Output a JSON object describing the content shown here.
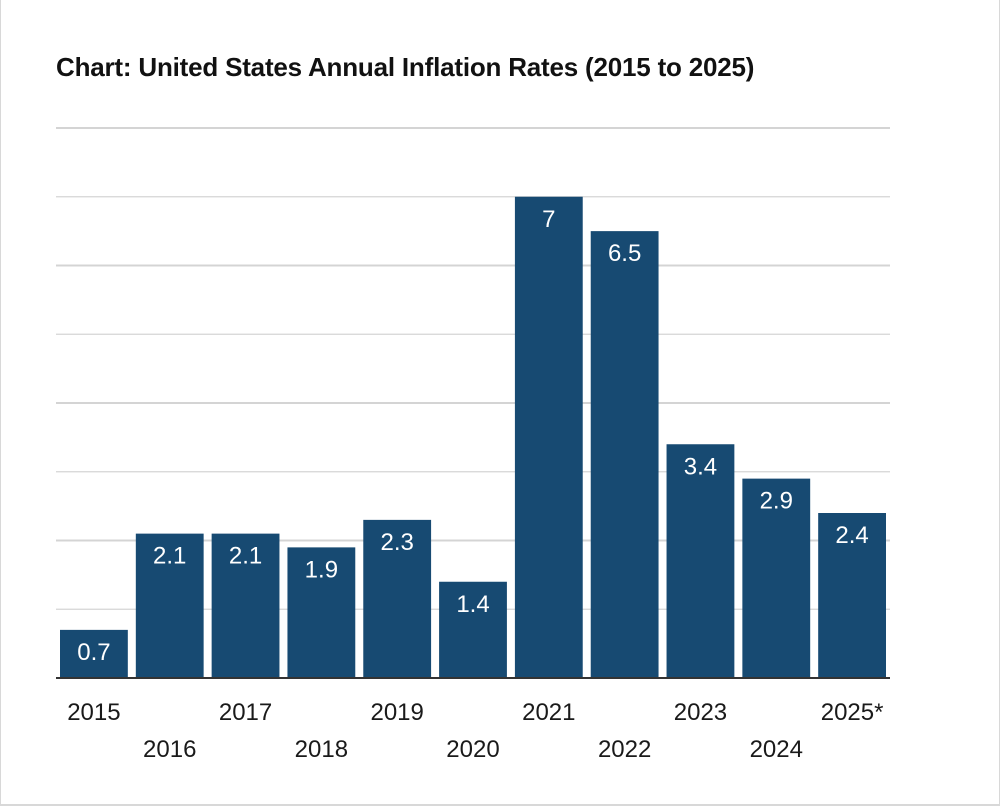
{
  "chart_data": {
    "type": "bar",
    "title": "Chart: United States Annual Inflation Rates (2015 to 2025)",
    "xlabel": "",
    "ylabel": "",
    "categories": [
      "2015",
      "2016",
      "2017",
      "2018",
      "2019",
      "2020",
      "2021",
      "2022",
      "2023",
      "2024",
      "2025*"
    ],
    "values": [
      0.7,
      2.1,
      2.1,
      1.9,
      2.3,
      1.4,
      7,
      6.5,
      3.4,
      2.9,
      2.4
    ],
    "value_labels": [
      "0.7",
      "2.1",
      "2.1",
      "1.9",
      "2.3",
      "1.4",
      "7",
      "6.5",
      "3.4",
      "2.9",
      "2.4"
    ],
    "ylim": [
      0,
      8
    ],
    "grid": true,
    "legend": "none"
  },
  "colors": {
    "bar": "#174a72",
    "grid": "#d4d4d4",
    "baseline": "#333333",
    "bar_label": "#ffffff"
  }
}
